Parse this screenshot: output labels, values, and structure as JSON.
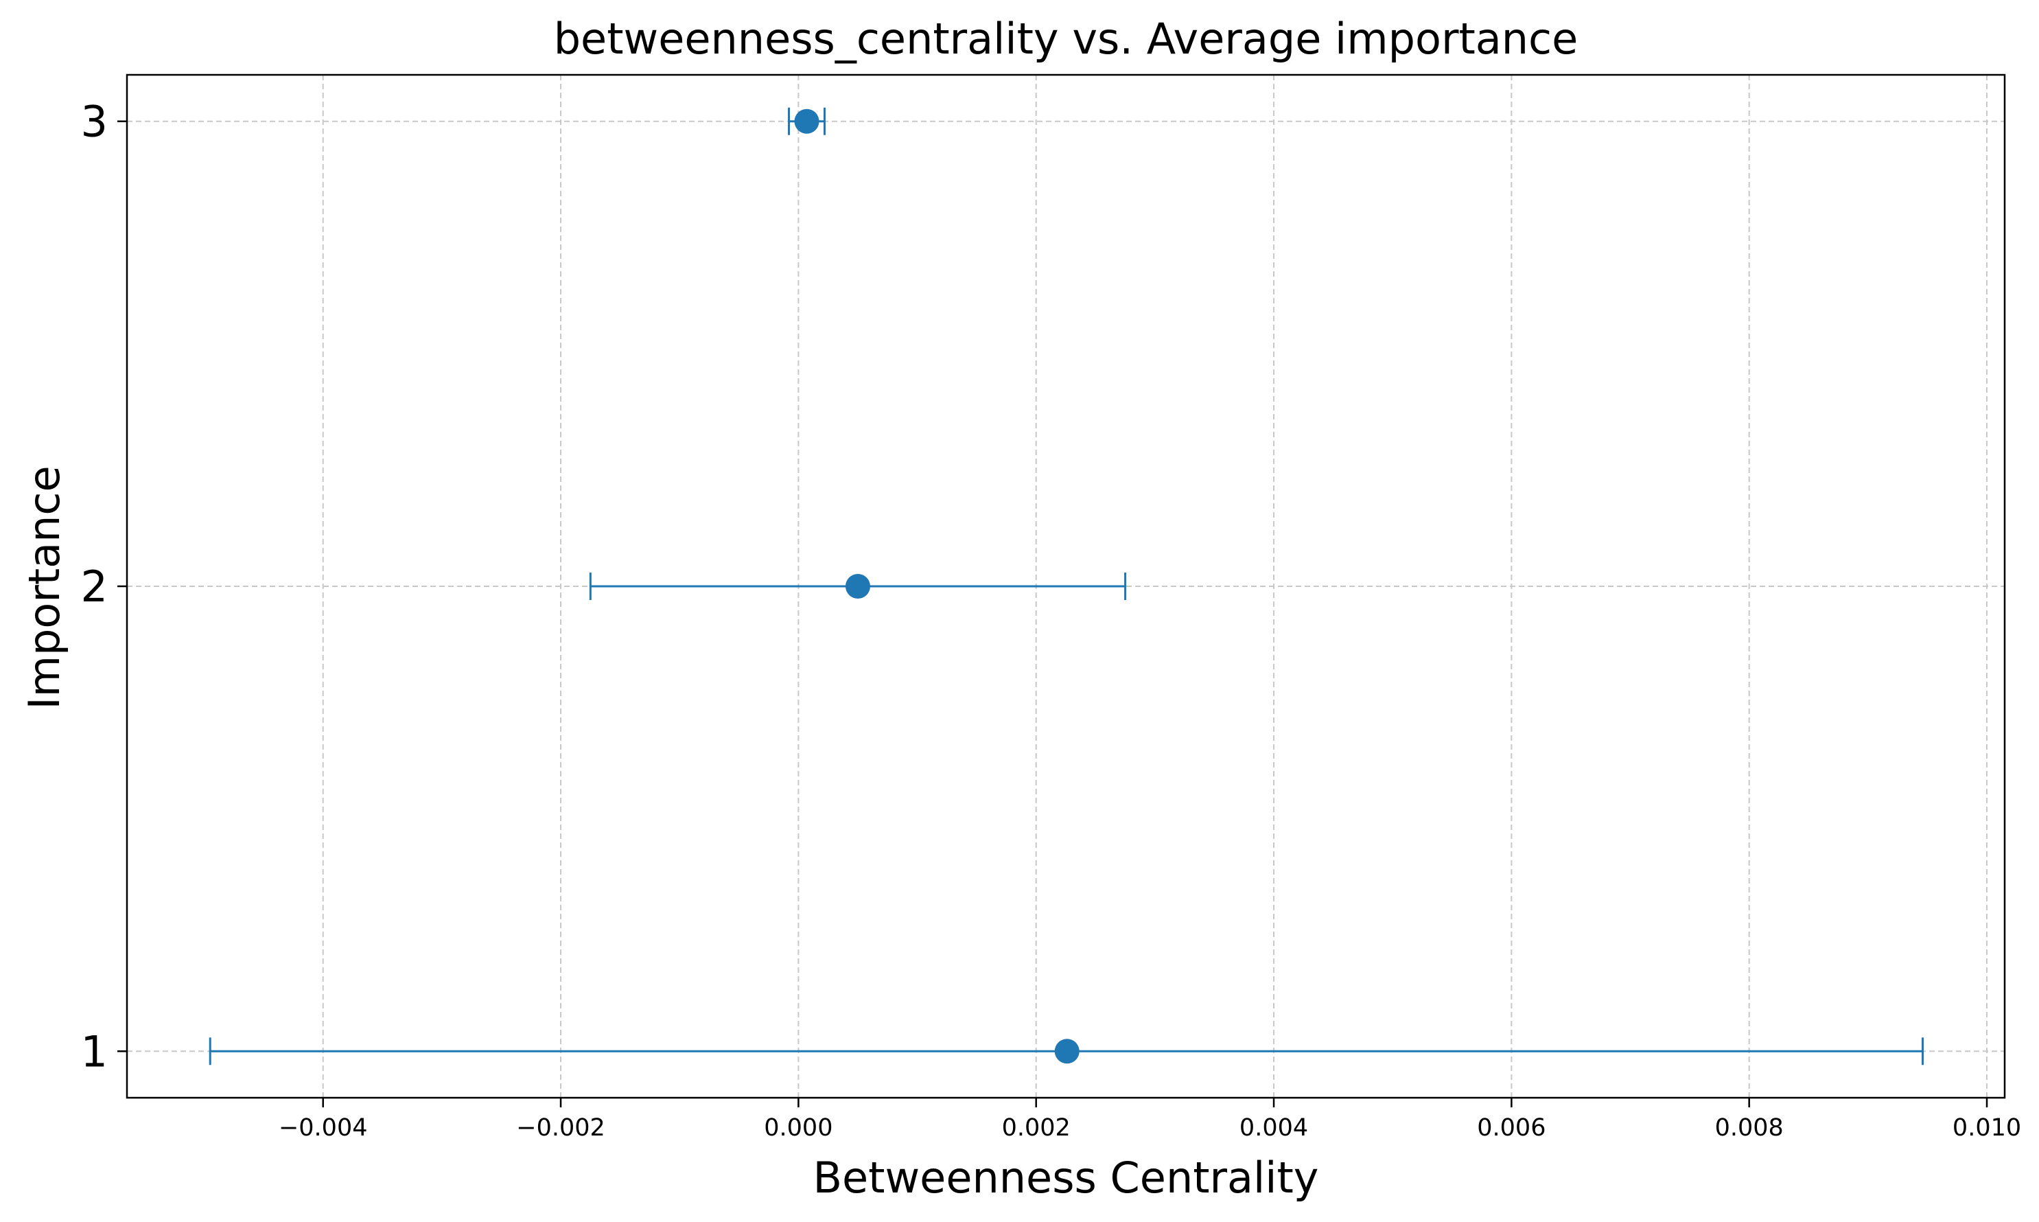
{
  "chart_data": {
    "type": "scatter",
    "title": "betweenness_centrality vs. Average importance",
    "xlabel": "Betweenness Centrality",
    "ylabel": "Importance",
    "xlim": [
      -0.00565,
      0.01015
    ],
    "ylim": [
      0.9,
      3.1
    ],
    "xticks": [
      "-0.004",
      "-0.002",
      "0.000",
      "0.002",
      "0.004",
      "0.006",
      "0.008",
      "0.010"
    ],
    "xtick_values": [
      -0.004,
      -0.002,
      0.0,
      0.002,
      0.004,
      0.006,
      0.008,
      0.01
    ],
    "yticks": [
      "1",
      "2",
      "3"
    ],
    "ytick_values": [
      1,
      2,
      3
    ],
    "grid": true,
    "color": "#1f77b4",
    "points": [
      {
        "y": 1,
        "x": 0.00226,
        "xerr_low": -0.00495,
        "xerr_high": 0.00946
      },
      {
        "y": 2,
        "x": 0.0005,
        "xerr_low": -0.00175,
        "xerr_high": 0.00275
      },
      {
        "y": 3,
        "x": 7e-05,
        "xerr_low": -8e-05,
        "xerr_high": 0.00022
      }
    ]
  }
}
